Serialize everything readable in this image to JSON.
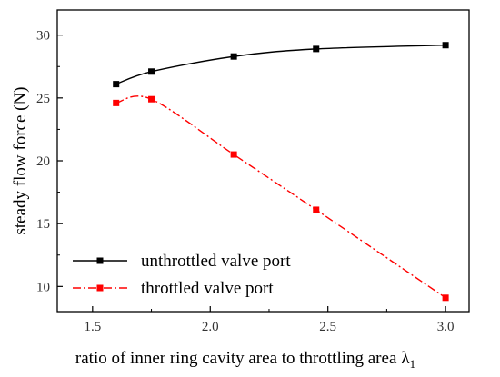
{
  "chart_data": {
    "type": "line",
    "xlabel": "ratio of inner ring cavity area to throttling area",
    "xlabel_symbol": "λ",
    "xlabel_subscript": "1",
    "ylabel": "steady flow force (N)",
    "xlim": [
      1.35,
      3.1
    ],
    "ylim": [
      8,
      32
    ],
    "xticks": [
      1.5,
      2.0,
      2.5,
      3.0
    ],
    "xtick_labels": [
      "1.5",
      "2.0",
      "2.5",
      "3.0"
    ],
    "yticks": [
      10,
      15,
      20,
      25,
      30
    ],
    "ytick_labels": [
      "10",
      "15",
      "20",
      "25",
      "30"
    ],
    "grid": false,
    "legend_position": "bottom-left",
    "series": [
      {
        "name": "unthrottled valve port",
        "color": "#000000",
        "line_style": "solid",
        "marker": "square",
        "x": [
          1.6,
          1.75,
          2.1,
          2.45,
          3.0
        ],
        "y": [
          26.1,
          27.1,
          28.3,
          28.9,
          29.2
        ]
      },
      {
        "name": "throttled valve port",
        "color": "#ff0000",
        "line_style": "dash-dot",
        "marker": "square",
        "x": [
          1.6,
          1.75,
          2.1,
          2.45,
          3.0
        ],
        "y": [
          24.6,
          24.9,
          20.5,
          16.1,
          9.1
        ]
      }
    ]
  }
}
